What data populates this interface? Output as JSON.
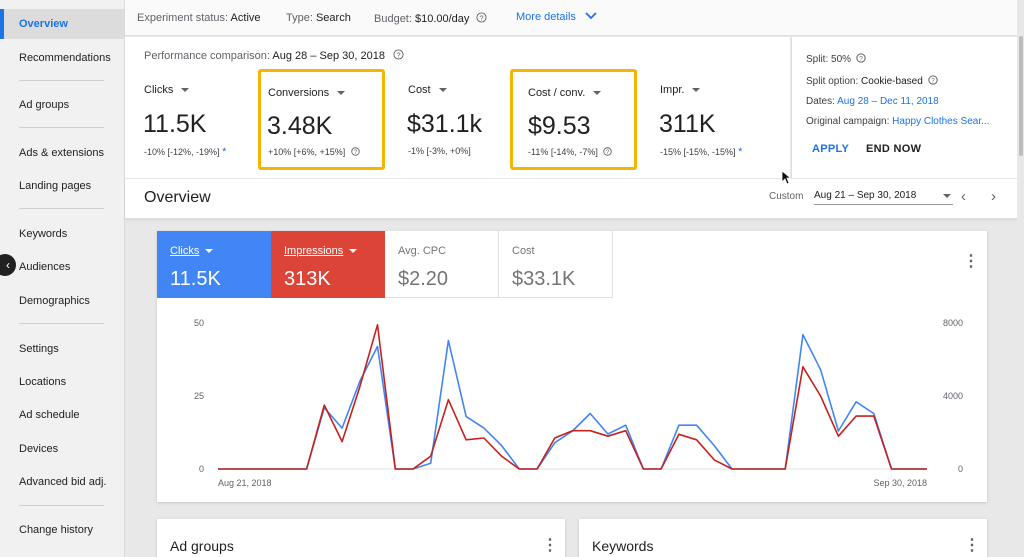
{
  "sidebar": {
    "items": [
      {
        "label": "Overview"
      },
      {
        "label": "Recommendations"
      },
      {
        "label": "Ad groups"
      },
      {
        "label": "Ads & extensions"
      },
      {
        "label": "Landing pages"
      },
      {
        "label": "Keywords"
      },
      {
        "label": "Audiences"
      },
      {
        "label": "Demographics"
      },
      {
        "label": "Settings"
      },
      {
        "label": "Locations"
      },
      {
        "label": "Ad schedule"
      },
      {
        "label": "Devices"
      },
      {
        "label": "Advanced bid adj."
      },
      {
        "label": "Change history"
      }
    ],
    "active": "Overview",
    "collapse_glyph": "‹"
  },
  "status": {
    "experiment_label": "Experiment status:",
    "experiment_value": "Active",
    "type_label": "Type:",
    "type_value": "Search",
    "budget_label": "Budget:",
    "budget_value": "$10.00/day",
    "more_details": "More details"
  },
  "performance": {
    "title_label": "Performance comparison:",
    "title_range": "Aug 28 – Sep 30, 2018",
    "metrics": [
      {
        "label": "Clicks",
        "value": "11.5K",
        "delta": "-10% [-12%, -19%]",
        "starred": true
      },
      {
        "label": "Conversions",
        "value": "3.48K",
        "delta": "+10% [+6%, +15%]",
        "starred": false
      },
      {
        "label": "Cost",
        "value": "$31.1k",
        "delta": "-1% [-3%, +0%]",
        "starred": false
      },
      {
        "label": "Cost / conv.",
        "value": "$9.53",
        "delta": "-11% [-14%, -7%]",
        "starred": false
      },
      {
        "label": "Impr.",
        "value": "311K",
        "delta": "-15% [-15%, -15%]",
        "starred": true
      }
    ],
    "star_glyph": "*",
    "help_glyph": "?"
  },
  "split_panel": {
    "split_label": "Split:",
    "split_value": "50%",
    "option_label": "Split option:",
    "option_value": "Cookie-based",
    "dates_label": "Dates:",
    "dates_value": "Aug 28 – Dec 11, 2018",
    "original_label": "Original campaign:",
    "original_value": "Happy Clothes Sear...",
    "apply": "APPLY",
    "end_now": "END NOW"
  },
  "overview": {
    "title": "Overview",
    "custom_label": "Custom",
    "date_range": "Aug 21 – Sep 30, 2018",
    "prev": "‹",
    "next": "›"
  },
  "chart_tiles": [
    {
      "label": "Clicks",
      "value": "11.5K"
    },
    {
      "label": "Impressions",
      "value": "313K"
    },
    {
      "label": "Avg. CPC",
      "value": "$2.20"
    },
    {
      "label": "Cost",
      "value": "$33.1K"
    }
  ],
  "kebab_glyph": "⋮",
  "chart_data": {
    "type": "line",
    "x": [
      "Aug 21",
      "Aug 22",
      "Aug 23",
      "Aug 24",
      "Aug 25",
      "Aug 26",
      "Aug 27",
      "Aug 28",
      "Aug 29",
      "Aug 30",
      "Aug 31",
      "Sep 1",
      "Sep 2",
      "Sep 3",
      "Sep 4",
      "Sep 5",
      "Sep 6",
      "Sep 7",
      "Sep 8",
      "Sep 9",
      "Sep 10",
      "Sep 11",
      "Sep 12",
      "Sep 13",
      "Sep 14",
      "Sep 15",
      "Sep 16",
      "Sep 17",
      "Sep 18",
      "Sep 19",
      "Sep 20",
      "Sep 21",
      "Sep 22",
      "Sep 23",
      "Sep 24",
      "Sep 25",
      "Sep 26",
      "Sep 27",
      "Sep 28",
      "Sep 29",
      "Sep 30"
    ],
    "x_tick_labels": [
      "Aug 21, 2018",
      "Sep 30, 2018"
    ],
    "left_axis": {
      "ticks": [
        0,
        25,
        50
      ],
      "ylim": [
        0,
        50
      ]
    },
    "right_axis": {
      "ticks": [
        0,
        4000,
        8000
      ],
      "ylim": [
        0,
        8000
      ]
    },
    "series": [
      {
        "name": "Clicks",
        "color": "#4285f4",
        "axis": "left",
        "values": [
          0,
          0,
          0,
          0,
          0,
          0,
          21,
          14,
          30,
          42,
          0,
          0,
          2,
          44,
          18,
          14,
          8,
          0,
          0,
          9,
          13,
          19,
          12,
          15,
          0,
          0,
          15,
          15,
          8,
          0,
          0,
          0,
          0,
          46,
          34,
          13,
          23,
          19,
          0,
          0,
          0
        ]
      },
      {
        "name": "Impressions",
        "color": "#c5221f",
        "axis": "right",
        "values": [
          0,
          0,
          0,
          0,
          0,
          0,
          3500,
          1500,
          4500,
          7900,
          0,
          0,
          700,
          3800,
          1600,
          1700,
          700,
          0,
          0,
          1700,
          2100,
          2100,
          1800,
          2100,
          0,
          0,
          1900,
          1600,
          500,
          0,
          0,
          0,
          0,
          5600,
          4000,
          1800,
          2900,
          2900,
          0,
          0,
          0
        ]
      }
    ],
    "grid": false,
    "legend": "tiles-top"
  },
  "bottom_cards": [
    {
      "title": "Ad groups"
    },
    {
      "title": "Keywords"
    }
  ]
}
